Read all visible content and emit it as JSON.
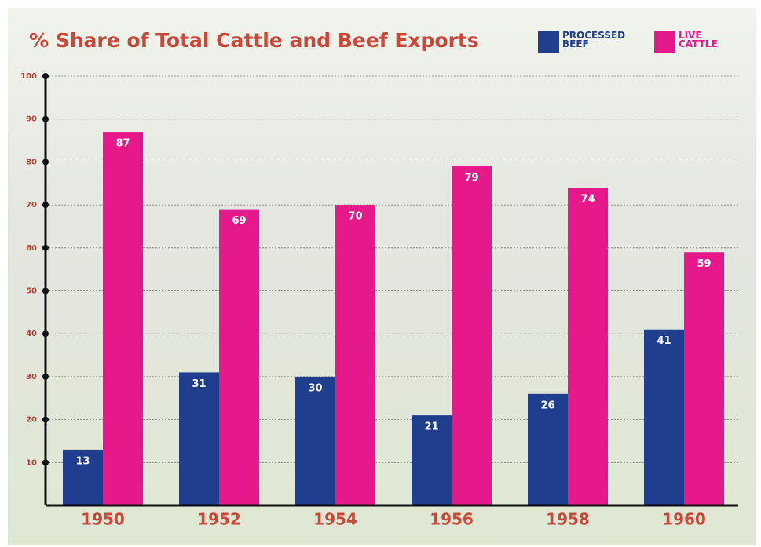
{
  "chart_data": {
    "type": "bar",
    "title": "% Share of Total Cattle and Beef Exports",
    "categories": [
      "1950",
      "1952",
      "1954",
      "1956",
      "1958",
      "1960"
    ],
    "series": [
      {
        "name": "PROCESSED BEEF",
        "color": "#1f3e8e",
        "values": [
          13,
          31,
          30,
          21,
          26,
          41
        ]
      },
      {
        "name": "LIVE CATTLE",
        "color": "#e5198a",
        "values": [
          87,
          69,
          70,
          79,
          74,
          59
        ]
      }
    ],
    "ylim": [
      0,
      100
    ],
    "yticks": [
      10,
      20,
      30,
      40,
      50,
      60,
      70,
      80,
      90,
      100
    ],
    "grid": true
  }
}
